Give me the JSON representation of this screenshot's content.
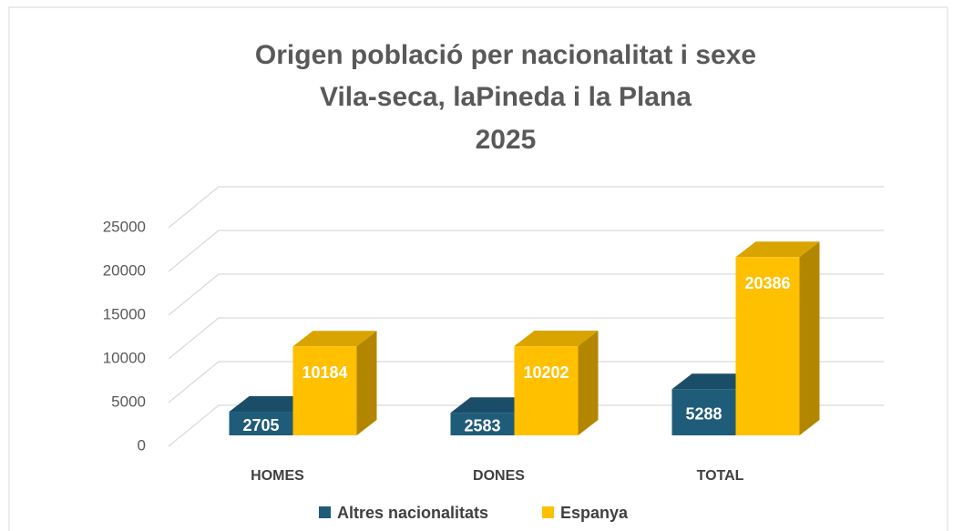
{
  "chart_data": {
    "type": "bar3d",
    "title": [
      "Origen població per nacionalitat i sexe",
      "Vila-seca, laPineda i la Plana",
      "2025"
    ],
    "categories": [
      "HOMES",
      "DONES",
      "TOTAL"
    ],
    "series": [
      {
        "name": "Altres nacionalitats",
        "color": "#1f5c7a",
        "values": [
          2705,
          2583,
          5288
        ]
      },
      {
        "name": "Espanya",
        "color": "#ffc000",
        "values": [
          10184,
          10202,
          20386
        ]
      }
    ],
    "ylim": [
      0,
      25000
    ],
    "yticks": [
      0,
      5000,
      10000,
      15000,
      20000,
      25000
    ],
    "grid": true,
    "legend": "bottom"
  }
}
